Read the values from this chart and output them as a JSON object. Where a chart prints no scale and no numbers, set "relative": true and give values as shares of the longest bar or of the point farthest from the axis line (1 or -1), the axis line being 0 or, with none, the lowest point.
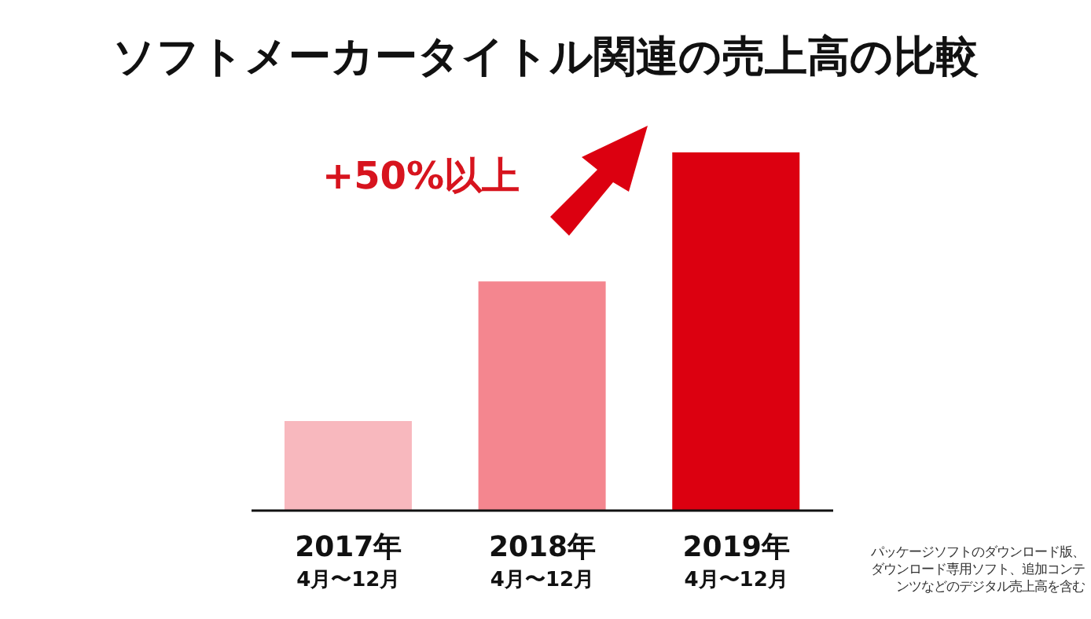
{
  "chart_data": {
    "type": "bar",
    "title": "ソフトメーカータイトル関連の売上高の比較",
    "categories": [
      "2017年 4月〜12月",
      "2018年 4月〜12月",
      "2019年 4月〜12月"
    ],
    "values": [
      0.25,
      0.64,
      1
    ],
    "colors": [
      "#f8b8be",
      "#f4868f",
      "#dc0010"
    ],
    "relative": true,
    "annotations": [
      "+50%以上",
      "パッケージソフトのダウンロード版、ダウンロード専用ソフト、追加コンテンツなどのデジタル売上高を含む"
    ]
  }
}
